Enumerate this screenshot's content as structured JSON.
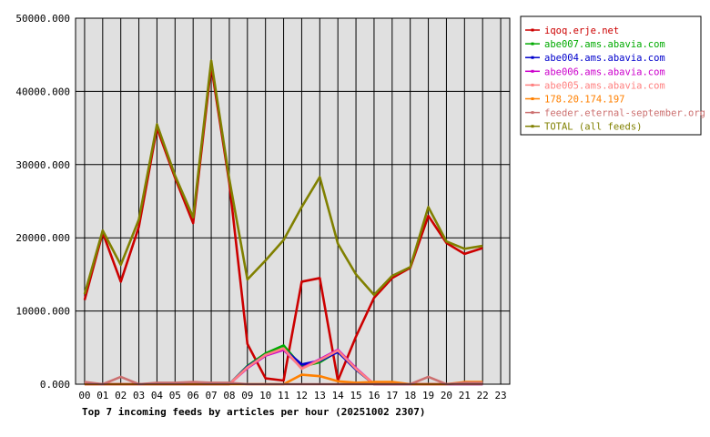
{
  "chart_data": {
    "type": "line",
    "title": "Top 7 incoming feeds by articles per hour (20251002 2307)",
    "xlabel": "",
    "ylabel": "",
    "ylim": [
      0,
      50000
    ],
    "y_ticks": [
      "0.000",
      "10000.000",
      "20000.000",
      "30000.000",
      "40000.000",
      "50000.000"
    ],
    "categories": [
      "00",
      "01",
      "02",
      "03",
      "04",
      "05",
      "06",
      "07",
      "08",
      "09",
      "10",
      "11",
      "12",
      "13",
      "14",
      "15",
      "16",
      "17",
      "18",
      "19",
      "20",
      "21",
      "22",
      "23"
    ],
    "grid": true,
    "legend_position": "right",
    "series": [
      {
        "name": "iqoq.erje.net",
        "color": "#cc0000",
        "values": [
          11500,
          20700,
          14000,
          21500,
          35000,
          28200,
          22000,
          43500,
          27500,
          5500,
          800,
          500,
          14000,
          14500,
          500,
          6500,
          11800,
          14500,
          15900,
          23000,
          19300,
          17800,
          18600,
          null
        ]
      },
      {
        "name": "abe007.ams.abavia.com",
        "color": "#00aa00",
        "values": [
          0,
          0,
          0,
          0,
          0,
          0,
          0,
          0,
          0,
          2500,
          4200,
          5300,
          2400,
          3000,
          4500,
          2000,
          0,
          0,
          0,
          0,
          0,
          0,
          0,
          null
        ]
      },
      {
        "name": "abe004.ams.abavia.com",
        "color": "#0000cc",
        "values": [
          0,
          0,
          0,
          0,
          0,
          0,
          0,
          0,
          0,
          2400,
          4000,
          4800,
          2700,
          3200,
          4400,
          2000,
          0,
          0,
          0,
          0,
          0,
          0,
          0,
          null
        ]
      },
      {
        "name": "abe006.ams.abavia.com",
        "color": "#cc00cc",
        "values": [
          0,
          0,
          0,
          0,
          0,
          0,
          0,
          0,
          0,
          2200,
          3900,
          4700,
          2200,
          3400,
          4700,
          2200,
          0,
          0,
          0,
          0,
          0,
          0,
          0,
          null
        ]
      },
      {
        "name": "abe005.ams.abavia.com",
        "color": "#ff8080",
        "values": [
          0,
          0,
          0,
          0,
          0,
          0,
          0,
          0,
          0,
          2300,
          4000,
          4900,
          2100,
          3300,
          4600,
          2100,
          0,
          0,
          0,
          0,
          0,
          0,
          0,
          null
        ]
      },
      {
        "name": "178.20.174.197",
        "color": "#ff8000",
        "values": [
          0,
          0,
          0,
          0,
          0,
          0,
          0,
          0,
          0,
          0,
          0,
          0,
          1300,
          1100,
          400,
          200,
          300,
          300,
          0,
          0,
          0,
          300,
          300,
          null
        ]
      },
      {
        "name": "feeder.eternal-september.org",
        "color": "#cc7070",
        "values": [
          300,
          0,
          1000,
          0,
          200,
          200,
          300,
          200,
          200,
          0,
          0,
          0,
          0,
          0,
          0,
          0,
          0,
          0,
          0,
          1000,
          0,
          200,
          200,
          null
        ]
      },
      {
        "name": "TOTAL (all feeds)",
        "color": "#808000",
        "values": [
          12300,
          21000,
          16300,
          22500,
          35500,
          28500,
          22800,
          44200,
          28000,
          14300,
          16900,
          19700,
          24200,
          28300,
          19200,
          15000,
          12200,
          14800,
          16000,
          24200,
          19500,
          18500,
          18900,
          null
        ]
      }
    ]
  }
}
